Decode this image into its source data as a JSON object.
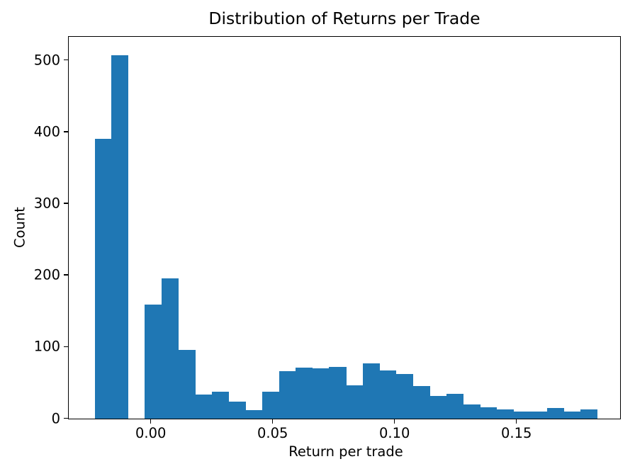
{
  "figure": {
    "background": "#ffffff"
  },
  "chart_data": {
    "type": "bar",
    "subtype": "histogram",
    "title": "Distribution of Returns per Trade",
    "xlabel": "Return per trade",
    "ylabel": "Count",
    "bar_color": "#1f77b4",
    "bins": {
      "start": -0.023,
      "width": 0.00687,
      "count": 30
    },
    "counts": [
      390,
      507,
      0,
      159,
      195,
      95,
      33,
      37,
      23,
      11,
      37,
      66,
      71,
      70,
      72,
      46,
      77,
      67,
      62,
      45,
      31,
      34,
      19,
      15,
      12,
      9,
      9,
      14,
      9,
      12
    ],
    "x_ticks": {
      "values": [
        0,
        0.05,
        0.1,
        0.15
      ],
      "labels": [
        "0.00",
        "0.05",
        "0.10",
        "0.15"
      ]
    },
    "y_ticks": {
      "values": [
        0,
        100,
        200,
        300,
        400,
        500
      ],
      "labels": [
        "0",
        "100",
        "200",
        "300",
        "400",
        "500"
      ]
    },
    "xlim": [
      -0.03363,
      0.19253
    ],
    "ylim": [
      0,
      532.35
    ],
    "grid": false,
    "legend": null
  }
}
